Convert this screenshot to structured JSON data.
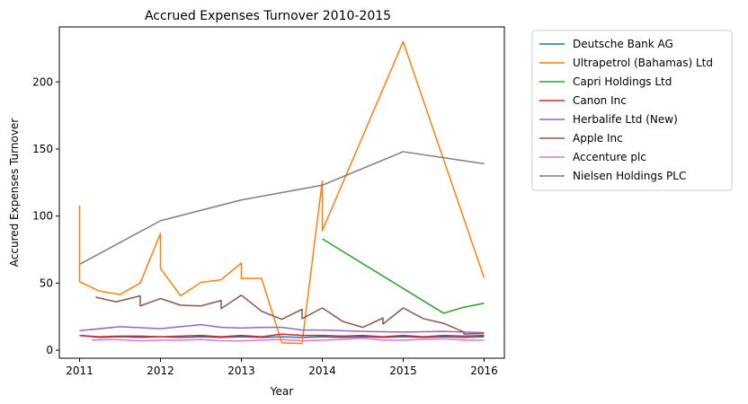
{
  "chart_data": {
    "type": "line",
    "title": "Accrued Expenses Turnover 2010-2015",
    "xlabel": "Year",
    "ylabel": "Accured Expenses Turnover",
    "xlim": [
      2010.75,
      2016.25
    ],
    "ylim": [
      -6,
      241
    ],
    "xticks": [
      2011,
      2012,
      2013,
      2014,
      2015,
      2016
    ],
    "yticks": [
      0,
      50,
      100,
      150,
      200
    ],
    "grid": false,
    "legend_position": "outside-right",
    "series": [
      {
        "name": "Deutsche Bank AG",
        "color": "#1f77b4",
        "points": [
          [
            2011.0,
            11
          ],
          [
            2011.25,
            9.5
          ],
          [
            2011.5,
            10
          ],
          [
            2011.75,
            9.5
          ],
          [
            2012.0,
            10
          ],
          [
            2012.25,
            9.5
          ],
          [
            2012.5,
            10
          ],
          [
            2012.75,
            9.5
          ],
          [
            2013.0,
            10
          ],
          [
            2013.25,
            9.5
          ],
          [
            2013.5,
            10
          ],
          [
            2013.75,
            9.5
          ],
          [
            2014.0,
            10
          ],
          [
            2014.25,
            9.5
          ],
          [
            2014.5,
            10
          ],
          [
            2014.75,
            9.5
          ],
          [
            2015.0,
            10
          ],
          [
            2015.25,
            9.5
          ],
          [
            2015.5,
            10
          ],
          [
            2015.75,
            9.5
          ],
          [
            2016.0,
            10
          ]
        ]
      },
      {
        "name": "Ultrapetrol (Bahamas) Ltd",
        "color": "#ff7f0e",
        "points": [
          [
            2011.0,
            108
          ],
          [
            2011.0,
            51
          ],
          [
            2011.25,
            44
          ],
          [
            2011.5,
            41.5
          ],
          [
            2011.75,
            50
          ],
          [
            2012.0,
            87
          ],
          [
            2012.0,
            61
          ],
          [
            2012.25,
            40.5
          ],
          [
            2012.5,
            50.5
          ],
          [
            2012.75,
            52.5
          ],
          [
            2013.0,
            65
          ],
          [
            2013.0,
            53.5
          ],
          [
            2013.25,
            53.5
          ],
          [
            2013.5,
            5.5
          ],
          [
            2013.75,
            5
          ],
          [
            2014.0,
            126
          ],
          [
            2014.0,
            89
          ],
          [
            2015.0,
            230
          ],
          [
            2016.0,
            54
          ]
        ]
      },
      {
        "name": "Capri Holdings Ltd",
        "color": "#2ca02c",
        "points": [
          [
            2014.0,
            83
          ],
          [
            2015.5,
            27.5
          ],
          [
            2015.75,
            32
          ],
          [
            2016.0,
            35
          ]
        ]
      },
      {
        "name": "Canon Inc",
        "color": "#d62728",
        "points": [
          [
            2011.0,
            11
          ],
          [
            2011.25,
            10
          ],
          [
            2011.5,
            10.5
          ],
          [
            2011.75,
            10.5
          ],
          [
            2012.0,
            10
          ],
          [
            2012.25,
            10.5
          ],
          [
            2012.5,
            11
          ],
          [
            2012.75,
            10
          ],
          [
            2013.0,
            11
          ],
          [
            2013.25,
            10
          ],
          [
            2013.5,
            12
          ],
          [
            2013.75,
            11
          ],
          [
            2014.0,
            11
          ],
          [
            2014.25,
            10.5
          ],
          [
            2014.5,
            11
          ],
          [
            2014.75,
            10
          ],
          [
            2015.0,
            11
          ],
          [
            2015.25,
            10
          ],
          [
            2015.5,
            11
          ],
          [
            2015.75,
            10.5
          ],
          [
            2016.0,
            11
          ]
        ]
      },
      {
        "name": "Herbalife Ltd (New)",
        "color": "#9467bd",
        "points": [
          [
            2011.0,
            14.5
          ],
          [
            2011.5,
            17.5
          ],
          [
            2012.0,
            16
          ],
          [
            2012.5,
            19
          ],
          [
            2012.75,
            17
          ],
          [
            2013.0,
            16.5
          ],
          [
            2013.25,
            17
          ],
          [
            2013.5,
            17
          ],
          [
            2013.75,
            15
          ],
          [
            2014.0,
            15
          ],
          [
            2014.5,
            14
          ],
          [
            2015.0,
            13.5
          ],
          [
            2015.5,
            14
          ],
          [
            2016.0,
            13
          ]
        ]
      },
      {
        "name": "Apple Inc",
        "color": "#8c564b",
        "points": [
          [
            2011.2,
            39.5
          ],
          [
            2011.45,
            36
          ],
          [
            2011.75,
            40.5
          ],
          [
            2011.75,
            33
          ],
          [
            2012.0,
            38.5
          ],
          [
            2012.25,
            33.5
          ],
          [
            2012.5,
            33
          ],
          [
            2012.75,
            37
          ],
          [
            2012.75,
            31
          ],
          [
            2013.0,
            41
          ],
          [
            2013.25,
            29
          ],
          [
            2013.5,
            23
          ],
          [
            2013.75,
            30.5
          ],
          [
            2013.75,
            23.5
          ],
          [
            2014.0,
            31.5
          ],
          [
            2014.25,
            21.5
          ],
          [
            2014.5,
            17
          ],
          [
            2014.75,
            24
          ],
          [
            2014.75,
            19.5
          ],
          [
            2015.0,
            31.5
          ],
          [
            2015.25,
            23.5
          ],
          [
            2015.5,
            20
          ],
          [
            2015.75,
            13.5
          ],
          [
            2015.75,
            12
          ],
          [
            2016.0,
            12.5
          ]
        ]
      },
      {
        "name": "Accenture plc",
        "color": "#e377c2",
        "points": [
          [
            2011.15,
            7.5
          ],
          [
            2011.45,
            8
          ],
          [
            2011.75,
            7
          ],
          [
            2012.0,
            7.5
          ],
          [
            2012.25,
            7.5
          ],
          [
            2012.5,
            8
          ],
          [
            2012.75,
            7
          ],
          [
            2013.0,
            7
          ],
          [
            2013.25,
            7.5
          ],
          [
            2013.5,
            8
          ],
          [
            2013.75,
            7
          ],
          [
            2014.0,
            7.5
          ],
          [
            2014.25,
            8
          ],
          [
            2014.5,
            9
          ],
          [
            2014.75,
            7.5
          ],
          [
            2015.0,
            7.5
          ],
          [
            2015.25,
            8
          ],
          [
            2015.5,
            8.5
          ],
          [
            2015.75,
            7.5
          ],
          [
            2016.0,
            7.5
          ]
        ]
      },
      {
        "name": "Nielsen Holdings PLC",
        "color": "#7f7f7f",
        "points": [
          [
            2011.0,
            64
          ],
          [
            2012.0,
            96.5
          ],
          [
            2013.0,
            112
          ],
          [
            2014.0,
            123
          ],
          [
            2015.0,
            148
          ],
          [
            2016.0,
            139
          ]
        ]
      }
    ]
  }
}
